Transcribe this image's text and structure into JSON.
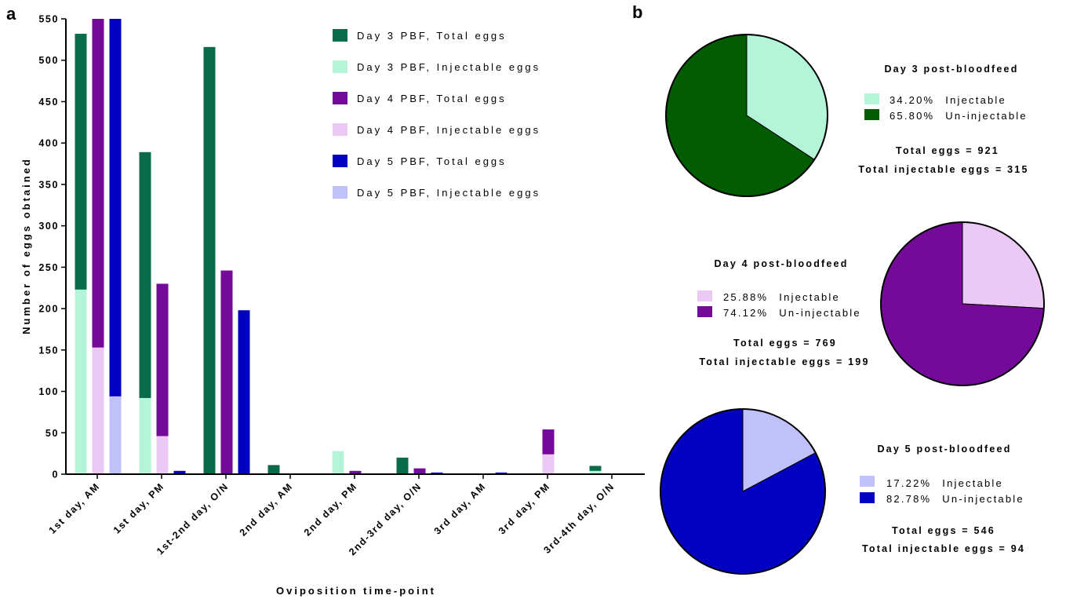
{
  "panels": {
    "a": "a",
    "b": "b"
  },
  "colors": {
    "d3_total": "#0a6b4b",
    "d3_inject": "#b4f5da",
    "d4_total": "#75099a",
    "d4_inject": "#ecc8f5",
    "d5_total": "#0202c0",
    "d5_inject": "#c0c0fb",
    "d3_uninject_pie": "#025c02"
  },
  "chart_data": [
    {
      "type": "bar",
      "stacked_overlay": true,
      "xlabel": "Oviposition time-point",
      "ylabel": "Number of eggs obtained",
      "ylim": [
        0,
        550
      ],
      "yticks": [
        0,
        50,
        100,
        150,
        200,
        250,
        300,
        350,
        400,
        450,
        500,
        550
      ],
      "categories": [
        "1st day, AM",
        "1st day, PM",
        "1st-2nd day, O/N",
        "2nd day, AM",
        "2nd day, PM",
        "2nd-3rd day, O/N",
        "3rd day, AM",
        "3rd day, PM",
        "3rd-4th day, O/N"
      ],
      "groups": [
        {
          "name": "Day 3",
          "total": {
            "name": "Day 3 PBF, Total eggs",
            "color": "#0a6b4b",
            "values": [
              532,
              389,
              516,
              11,
              0,
              20,
              0,
              0,
              10
            ]
          },
          "injectable": {
            "name": "Day 3 PBF, Injectable eggs",
            "color": "#b4f5da",
            "values": [
              223,
              92,
              0,
              0,
              28,
              0,
              0,
              0,
              4
            ]
          }
        },
        {
          "name": "Day 4",
          "total": {
            "name": "Day 4 PBF, Total eggs",
            "color": "#75099a",
            "values": [
              550,
              230,
              246,
              0,
              4,
              7,
              0,
              54,
              0
            ]
          },
          "injectable": {
            "name": "Day 4 PBF, Injectable eggs",
            "color": "#ecc8f5",
            "values": [
              153,
              46,
              0,
              0,
              0,
              0,
              0,
              24,
              0
            ]
          }
        },
        {
          "name": "Day 5",
          "total": {
            "name": "Day 5 PBF, Total eggs",
            "color": "#0202c0",
            "values": [
              550,
              4,
              198,
              0,
              0,
              2,
              2,
              0,
              0
            ]
          },
          "injectable": {
            "name": "Day 5 PBF, Injectable eggs",
            "color": "#c0c0fb",
            "values": [
              94,
              0,
              0,
              0,
              0,
              0,
              0,
              0,
              0
            ]
          }
        }
      ],
      "legend": [
        "Day 3 PBF, Total eggs",
        "Day 3 PBF, Injectable eggs",
        "Day 4 PBF, Total eggs",
        "Day 4 PBF, Injectable eggs",
        "Day 5 PBF, Total eggs",
        "Day 5 PBF, Injectable eggs"
      ],
      "legend_position": "top-right"
    },
    {
      "type": "pie",
      "title": "Day 3 post-bloodfeed",
      "slices": [
        {
          "label": "Injectable",
          "pct_text": "34.20%",
          "value": 34.2,
          "color": "#b4f5da"
        },
        {
          "label": "Un-injectable",
          "pct_text": "65.80%",
          "value": 65.8,
          "color": "#025c02"
        }
      ],
      "total_text": "Total eggs = 921",
      "injectable_text": "Total injectable eggs = 315"
    },
    {
      "type": "pie",
      "title": "Day 4 post-bloodfeed",
      "slices": [
        {
          "label": "Injectable",
          "pct_text": "25.88%",
          "value": 25.88,
          "color": "#ecc8f5"
        },
        {
          "label": "Un-injectable",
          "pct_text": "74.12%",
          "value": 74.12,
          "color": "#75099a"
        }
      ],
      "total_text": "Total eggs = 769",
      "injectable_text": "Total injectable eggs = 199"
    },
    {
      "type": "pie",
      "title": "Day 5 post-bloodfeed",
      "slices": [
        {
          "label": "Injectable",
          "pct_text": "17.22%",
          "value": 17.22,
          "color": "#c0c0fb"
        },
        {
          "label": "Un-injectable",
          "pct_text": "82.78%",
          "value": 82.78,
          "color": "#0202c0"
        }
      ],
      "total_text": "Total eggs = 546",
      "injectable_text": "Total injectable eggs = 94"
    }
  ]
}
